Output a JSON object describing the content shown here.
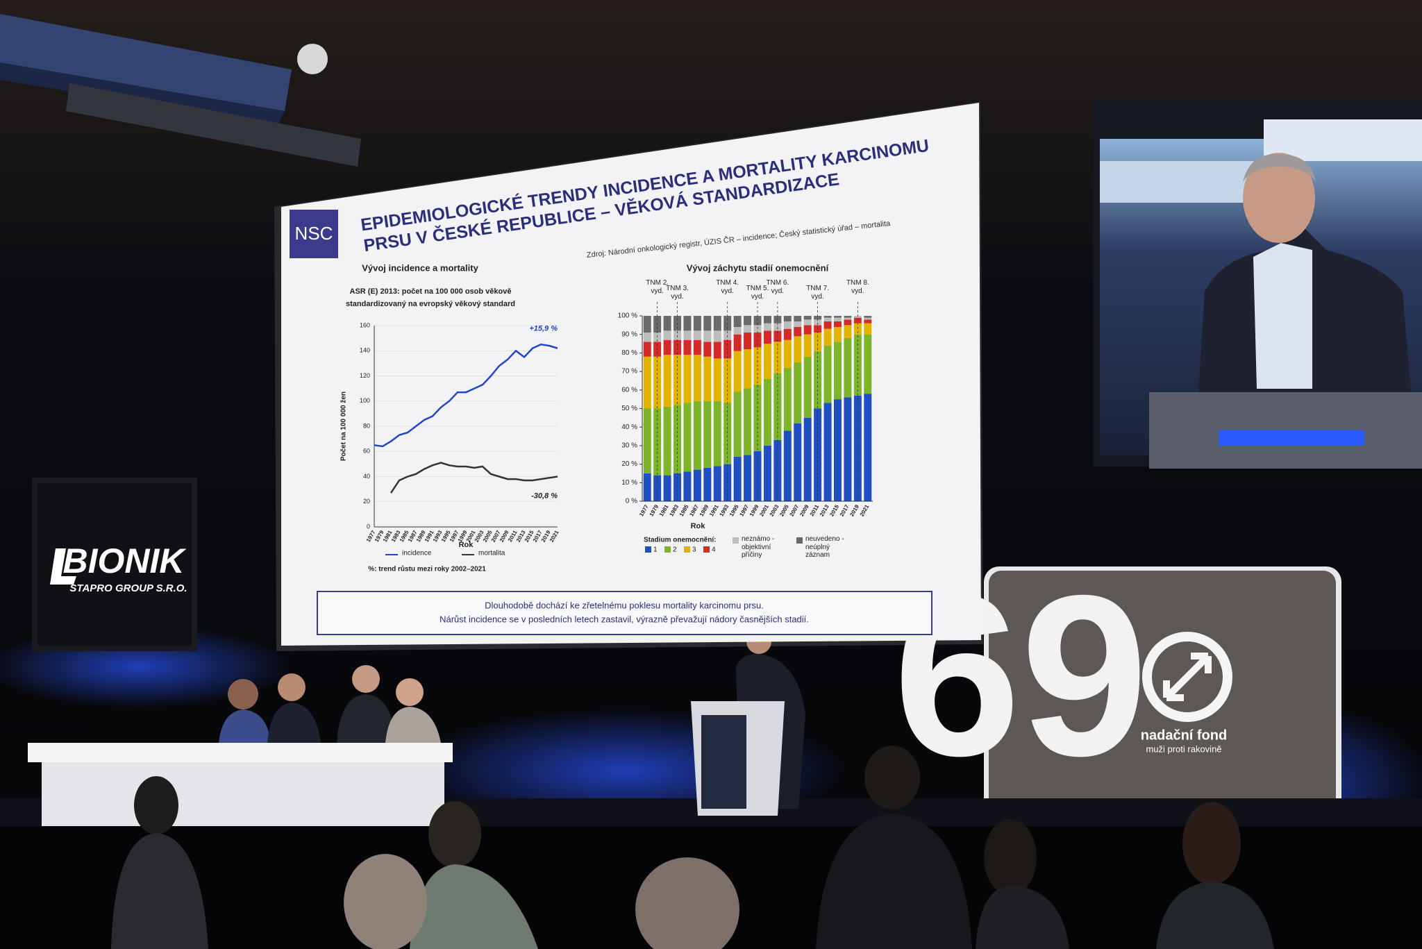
{
  "slide": {
    "logo": "NSC",
    "title": [
      "EPIDEMIOLOGICKÉ TRENDY INCIDENCE A MORTALITY KARCINOMU",
      "PRSU V ČESKÉ REPUBLICE – VĚKOVÁ STANDARDIZACE"
    ],
    "source": "Zdroj: Národní onkologický registr, ÚZIS ČR – incidence; Český statistický úřad – mortalita",
    "summary": [
      "Dlouhodobě dochází ke zřetelnému poklesu mortality karcinomu prsu.",
      "Nárůst incidence se v posledních letech zastavil, výrazně převažují nádory časnějších stadií."
    ]
  },
  "chart_data": [
    {
      "type": "line",
      "title": "Vývoj incidence a mortality",
      "subtitle": [
        "ASR (E) 2013: počet na 100 000 osob věkově",
        "standardizovaný na evropský věkový standard"
      ],
      "y_label": "Počet na 100 000 žen",
      "x_label": "Rok",
      "note": "%: trend růstu mezi roky 2002–2021",
      "annotations": [
        "+15,9 %",
        "-30,8 %"
      ],
      "categories": [
        1977,
        1979,
        1981,
        1983,
        1985,
        1987,
        1989,
        1991,
        1993,
        1995,
        1997,
        1999,
        2001,
        2003,
        2005,
        2007,
        2009,
        2011,
        2013,
        2015,
        2017,
        2019,
        2021
      ],
      "series": [
        {
          "name": "incidence",
          "color": "#1f45c8",
          "values": [
            65,
            64,
            68,
            73,
            75,
            80,
            85,
            88,
            95,
            100,
            107,
            107,
            110,
            113,
            120,
            128,
            133,
            140,
            135,
            142,
            145,
            144,
            142
          ]
        },
        {
          "name": "mortalita",
          "color": "#333333",
          "values": [
            null,
            null,
            27,
            37,
            40,
            42,
            46,
            49,
            51,
            49,
            48,
            48,
            47,
            48,
            42,
            40,
            38,
            38,
            37,
            37,
            38,
            39,
            40
          ]
        }
      ],
      "ylim": [
        0,
        160
      ],
      "yticks": [
        0,
        20,
        40,
        60,
        80,
        100,
        120,
        140,
        160
      ]
    },
    {
      "type": "stacked-bar",
      "title": "Vývoj záchytu stadií onemocnění",
      "x_label": "Rok",
      "legend_title": "Stadium onemocnění:",
      "categories": [
        1977,
        1979,
        1981,
        1983,
        1985,
        1987,
        1989,
        1991,
        1993,
        1995,
        1997,
        1999,
        2001,
        2003,
        2005,
        2007,
        2009,
        2011,
        2013,
        2015,
        2017,
        2019,
        2021
      ],
      "series": [
        {
          "name": "1",
          "color": "#1f4fc0",
          "values": [
            15,
            14,
            14,
            15,
            16,
            17,
            18,
            19,
            20,
            24,
            25,
            27,
            30,
            33,
            38,
            42,
            45,
            50,
            53,
            55,
            56,
            57,
            58
          ]
        },
        {
          "name": "2",
          "color": "#7cb42a",
          "values": [
            35,
            36,
            37,
            37,
            37,
            37,
            36,
            35,
            33,
            35,
            36,
            36,
            36,
            36,
            34,
            33,
            33,
            31,
            31,
            31,
            32,
            33,
            32
          ]
        },
        {
          "name": "3",
          "color": "#e2b400",
          "values": [
            28,
            28,
            28,
            27,
            26,
            25,
            24,
            23,
            24,
            22,
            21,
            20,
            19,
            17,
            15,
            14,
            12,
            10,
            9,
            8,
            7,
            6,
            6
          ]
        },
        {
          "name": "4",
          "color": "#d42a2a",
          "values": [
            8,
            8,
            8,
            8,
            8,
            8,
            8,
            9,
            10,
            9,
            9,
            8,
            7,
            6,
            6,
            5,
            5,
            4,
            4,
            3,
            3,
            3,
            2
          ]
        },
        {
          "name": "neznámo - objektivní příčiny",
          "color": "#bdbdbd",
          "values": [
            5,
            5,
            5,
            5,
            5,
            5,
            6,
            6,
            5,
            4,
            4,
            4,
            4,
            4,
            4,
            3,
            3,
            3,
            2,
            2,
            1,
            1,
            1
          ]
        },
        {
          "name": "neuvedeno - neúplný záznam",
          "color": "#6a6a6a",
          "values": [
            9,
            9,
            8,
            8,
            8,
            8,
            8,
            8,
            8,
            6,
            5,
            5,
            4,
            4,
            3,
            3,
            2,
            2,
            1,
            1,
            1,
            0,
            1
          ]
        }
      ],
      "tnm": [
        {
          "label": "TNM 2. vyd.",
          "x": 1979
        },
        {
          "label": "TNM 3. vyd.",
          "x": 1983
        },
        {
          "label": "TNM 4. vyd.",
          "x": 1993
        },
        {
          "label": "TNM 5. vyd.",
          "x": 1999
        },
        {
          "label": "TNM 6. vyd.",
          "x": 2003
        },
        {
          "label": "TNM 7. vyd.",
          "x": 2011
        },
        {
          "label": "TNM 8. vyd.",
          "x": 2019
        }
      ],
      "ylim": [
        0,
        100
      ],
      "yticks": [
        {
          "value": 0,
          "label": "0 %"
        },
        {
          "value": 10,
          "label": "10 %"
        },
        {
          "value": 20,
          "label": "20 %"
        },
        {
          "value": 30,
          "label": "30 %"
        },
        {
          "value": 40,
          "label": "40 %"
        },
        {
          "value": 50,
          "label": "50 %"
        },
        {
          "value": 60,
          "label": "60 %"
        },
        {
          "value": 70,
          "label": "70 %"
        },
        {
          "value": 80,
          "label": "80 %"
        },
        {
          "value": 90,
          "label": "90 %"
        },
        {
          "value": 100,
          "label": "100 %"
        }
      ]
    }
  ],
  "signs": {
    "bionik": "BIONIK",
    "bionik_sub": "STAPRO GROUP S.R.O.",
    "foundation_digits": "69",
    "foundation_name": "nadační fond",
    "foundation_sub": "muži proti rakovině"
  }
}
